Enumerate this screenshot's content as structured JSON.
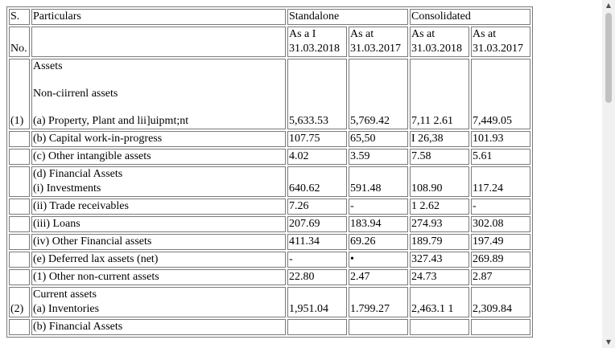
{
  "header": {
    "sno_top": "S.",
    "sno_bottom": "No.",
    "particulars": "Particulars",
    "standalone": "Standalone",
    "consolidated": "Consolidated",
    "col1_line1": "As a I",
    "col1_line2": "31.03.2018",
    "col2_line1": "As at",
    "col2_line2": "31.03.2017",
    "col3_line1": "As at",
    "col3_line2": "31.03.2018",
    "col4_line1": "As at",
    "col4_line2": "31.03.2017"
  },
  "rows": [
    {
      "sno": "(1)",
      "section": "Assets",
      "subsection": "Non-ciirrenl assets",
      "label": "(a) Property, Plant and lii]uipmt;nt",
      "v1": "5,633.53",
      "v2": "5,769.42",
      "v3": "7,11 2.61",
      "v4": "7,449.05"
    },
    {
      "label": "(b) Capital work-in-progress",
      "v1": "107.75",
      "v2": "65,50",
      "v3": "I 26,38",
      "v4": "101.93"
    },
    {
      "label": "(c) Other intangible assets",
      "v1": "4.02",
      "v2": "3.59",
      "v3": "7.58",
      "v4": "5.61"
    },
    {
      "label_top": "(d) Financial Assets",
      "label": "(i) Investments",
      "v1": "640.62",
      "v2": "591.48",
      "v3": "108.90",
      "v4": "117.24"
    },
    {
      "label": "(ii) Trade receivables",
      "v1": "7.26",
      "v2": "-",
      "v3": "1 2.62",
      "v4": "-"
    },
    {
      "label": "(iii) Loans",
      "v1": "207.69",
      "v2": "183.94",
      "v3": "274.93",
      "v4": "302.08"
    },
    {
      "label": "(iv) Other Financial assets",
      "v1": "411.34",
      "v2": "69.26",
      "v3": "189.79",
      "v4": "197.49"
    },
    {
      "label": "(e) Deferred lax assets (net)",
      "v1": "-",
      "v2": "•",
      "v3": "327.43",
      "v4": "269.89"
    },
    {
      "label": "(1) Other non-current assets",
      "v1": "22.80",
      "v2": "2.47",
      "v3": "24.73",
      "v4": "2.87"
    },
    {
      "sno": "(2)",
      "label_top": "Current assets",
      "label": "(a) Inventories",
      "v1": "1,951.04",
      "v2": "1.799.27",
      "v3": "2,463.1 1",
      "v4": "2,309.84"
    },
    {
      "label": "(b) Financial Assets",
      "v1": "",
      "v2": "",
      "v3": "",
      "v4": ""
    }
  ]
}
